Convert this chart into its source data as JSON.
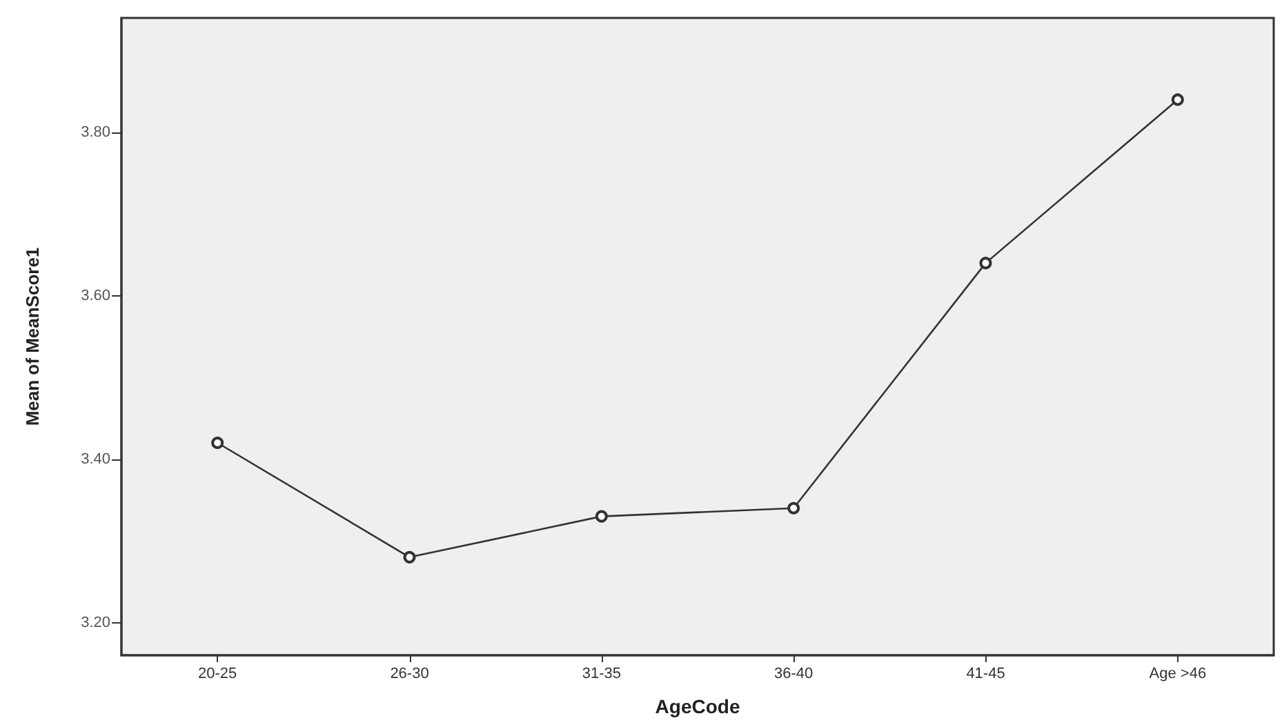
{
  "chart_data": {
    "type": "line",
    "xlabel": "AgeCode",
    "ylabel": "Mean of MeanScore1",
    "categories": [
      "20-25",
      "26-30",
      "31-35",
      "36-40",
      "41-45",
      "Age >46"
    ],
    "series": [
      {
        "color": "#333333",
        "values": [
          3.42,
          3.28,
          3.33,
          3.34,
          3.64,
          3.84
        ]
      }
    ],
    "ylim": [
      3.16,
      3.94
    ],
    "yticks": [
      {
        "value": 3.2,
        "label": "3.20"
      },
      {
        "value": 3.4,
        "label": "3.40"
      },
      {
        "value": 3.6,
        "label": "3.60"
      },
      {
        "value": 3.8,
        "label": "3.80"
      }
    ],
    "grid": false,
    "legend": false,
    "marker": "circle",
    "line_style": "solid"
  }
}
